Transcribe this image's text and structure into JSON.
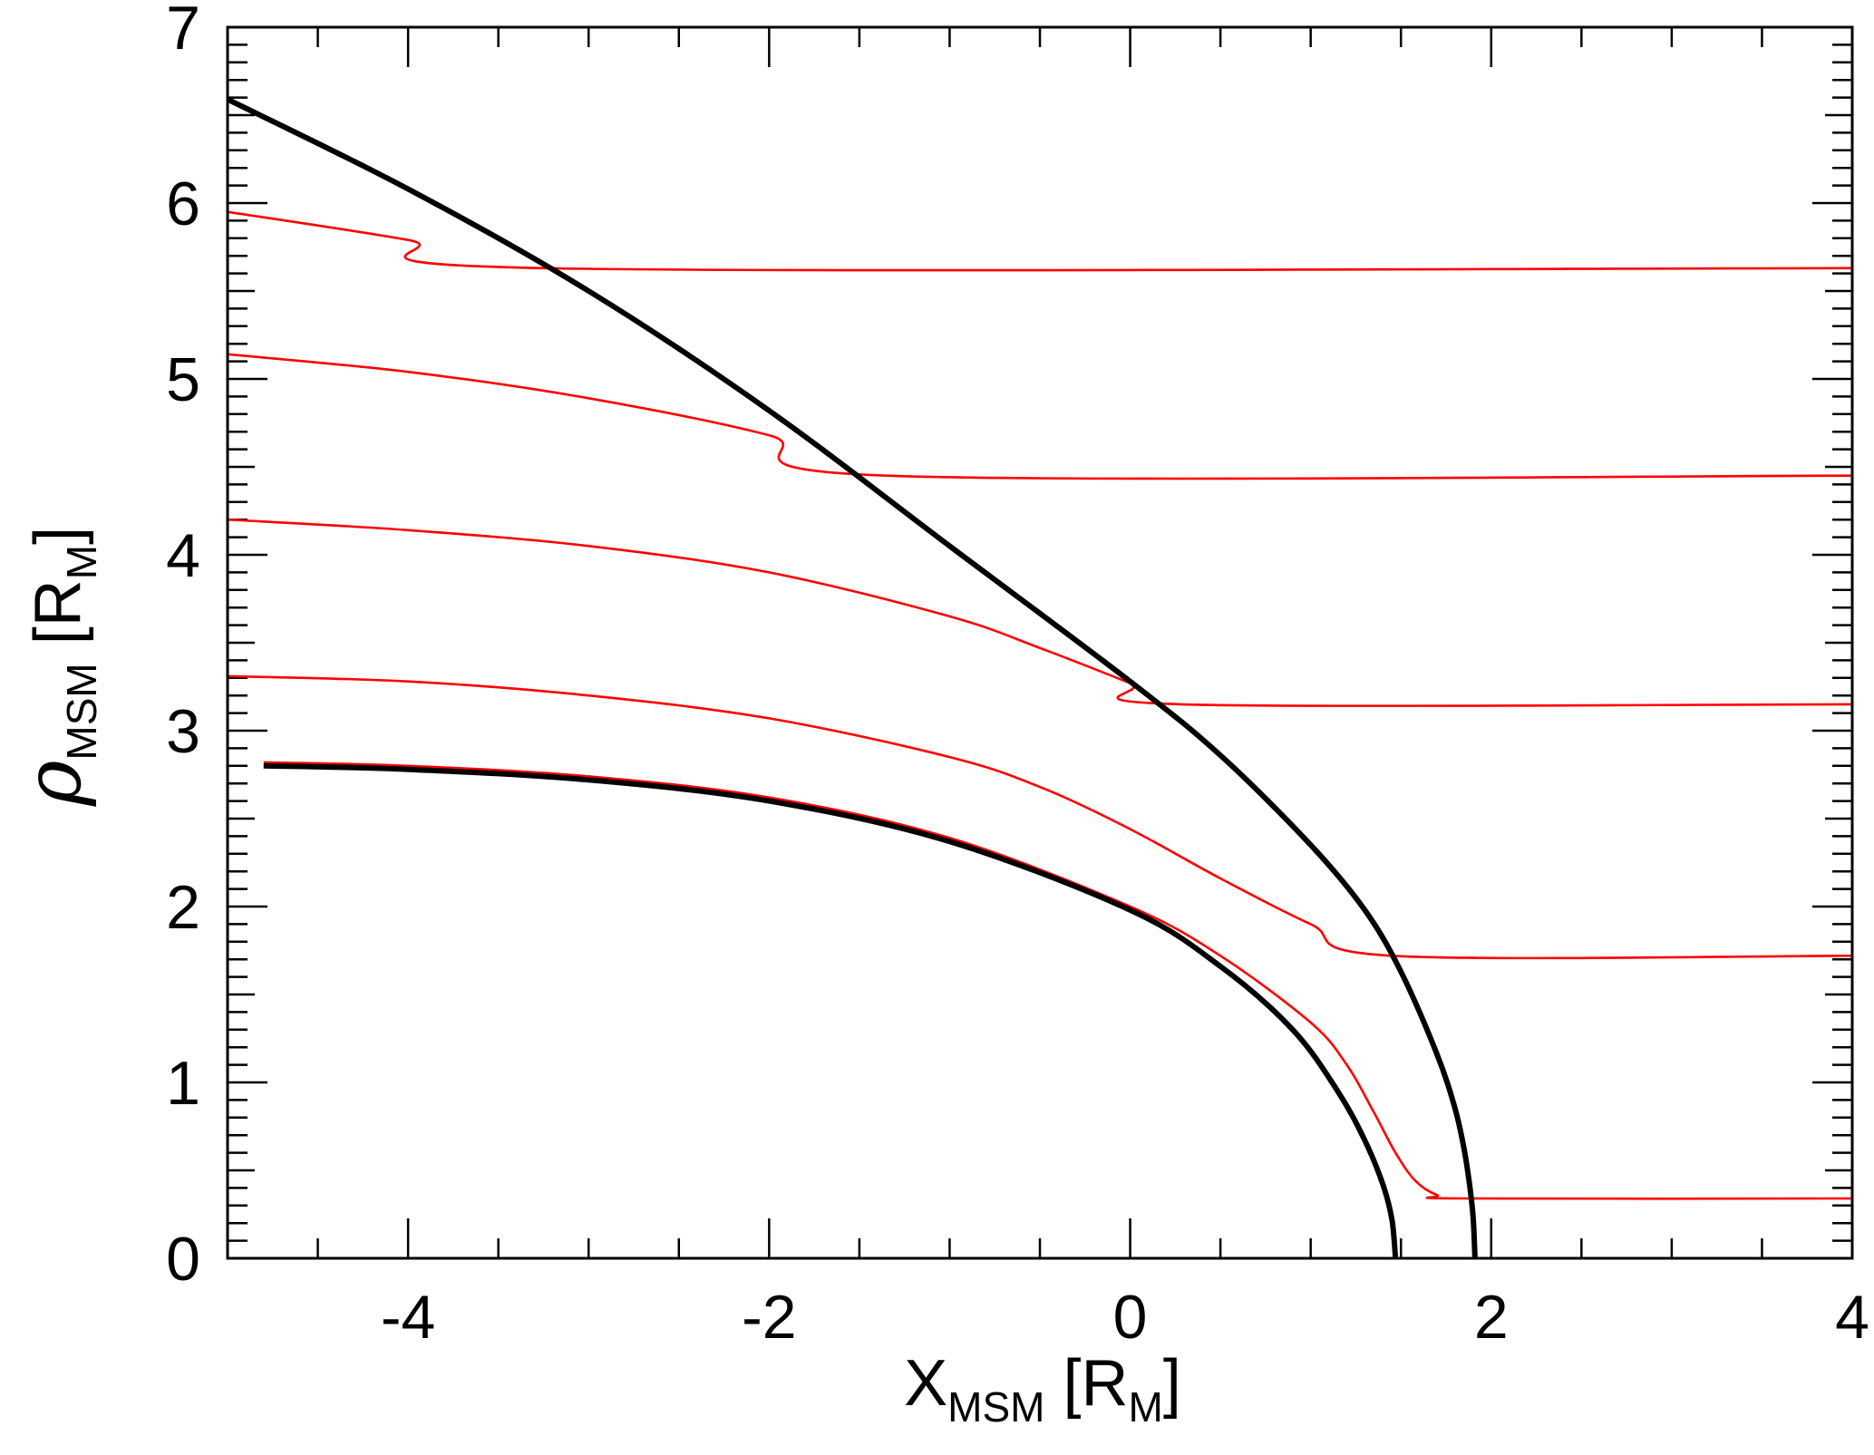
{
  "chart_data": {
    "type": "line",
    "title": "",
    "xlabel": {
      "main": "X",
      "sub": "MSM",
      "unit_open": " [R",
      "unit_sub": "M",
      "unit_close": "]"
    },
    "ylabel": {
      "main": "ρ",
      "sub": "MSM",
      "unit_open": " [R",
      "unit_sub": "M",
      "unit_close": "]"
    },
    "xlim": [
      -5,
      4
    ],
    "ylim": [
      0,
      7
    ],
    "x_major_ticks": [
      -4,
      -2,
      0,
      2,
      4
    ],
    "x_tick_labels": [
      "-4",
      "-2",
      "0",
      "2",
      "4"
    ],
    "y_major_ticks": [
      0,
      1,
      2,
      3,
      4,
      5,
      6,
      7
    ],
    "y_tick_labels": [
      "0",
      "1",
      "2",
      "3",
      "4",
      "5",
      "6",
      "7"
    ],
    "x_minor_step": 0.5,
    "y_minor_step": 0.1,
    "grid": false,
    "legend": "none",
    "colors": {
      "boundary": "#000000",
      "field_line": "#ff0000"
    },
    "series": [
      {
        "role": "boundary",
        "points": [
          [
            -5,
            6.59
          ],
          [
            -4,
            6.08
          ],
          [
            -3,
            5.5
          ],
          [
            -2,
            4.82
          ],
          [
            -1,
            4.05
          ],
          [
            0,
            3.28
          ],
          [
            0.5,
            2.86
          ],
          [
            1,
            2.35
          ],
          [
            1.3,
            1.98
          ],
          [
            1.5,
            1.63
          ],
          [
            1.7,
            1.16
          ],
          [
            1.8,
            0.85
          ],
          [
            1.85,
            0.62
          ],
          [
            1.88,
            0.42
          ],
          [
            1.9,
            0.23
          ],
          [
            1.91,
            0.0
          ]
        ]
      },
      {
        "role": "boundary",
        "points": [
          [
            -4.8,
            2.8
          ],
          [
            -4,
            2.78
          ],
          [
            -3,
            2.72
          ],
          [
            -2,
            2.6
          ],
          [
            -1,
            2.37
          ],
          [
            0,
            1.98
          ],
          [
            0.5,
            1.66
          ],
          [
            0.9,
            1.3
          ],
          [
            1.15,
            0.95
          ],
          [
            1.3,
            0.67
          ],
          [
            1.4,
            0.42
          ],
          [
            1.45,
            0.22
          ],
          [
            1.47,
            0.0
          ]
        ]
      },
      {
        "role": "field_line",
        "points": [
          [
            -5,
            5.95
          ],
          [
            -4,
            5.79
          ],
          [
            -3.25,
            5.63
          ],
          [
            4,
            5.63
          ]
        ]
      },
      {
        "role": "field_line",
        "points": [
          [
            -5,
            5.14
          ],
          [
            -4,
            5.04
          ],
          [
            -3,
            4.89
          ],
          [
            -2,
            4.68
          ],
          [
            -1.35,
            4.45
          ],
          [
            4,
            4.45
          ]
        ]
      },
      {
        "role": "field_line",
        "points": [
          [
            -5,
            4.2
          ],
          [
            -4,
            4.14
          ],
          [
            -3,
            4.05
          ],
          [
            -2,
            3.9
          ],
          [
            -1,
            3.65
          ],
          [
            -0.5,
            3.47
          ],
          [
            0,
            3.27
          ],
          [
            0.28,
            3.15
          ],
          [
            4,
            3.15
          ]
        ]
      },
      {
        "role": "field_line",
        "points": [
          [
            -5,
            3.31
          ],
          [
            -4,
            3.28
          ],
          [
            -3,
            3.2
          ],
          [
            -2,
            3.07
          ],
          [
            -1,
            2.85
          ],
          [
            -0.5,
            2.68
          ],
          [
            0,
            2.44
          ],
          [
            0.5,
            2.16
          ],
          [
            1,
            1.9
          ],
          [
            1.45,
            1.72
          ],
          [
            4,
            1.72
          ]
        ]
      },
      {
        "role": "field_line",
        "points": [
          [
            -4.8,
            2.82
          ],
          [
            -4,
            2.8
          ],
          [
            -3,
            2.74
          ],
          [
            -2,
            2.62
          ],
          [
            -1,
            2.39
          ],
          [
            0,
            2.0
          ],
          [
            0.5,
            1.72
          ],
          [
            1.0,
            1.34
          ],
          [
            1.2,
            1.1
          ],
          [
            1.35,
            0.83
          ],
          [
            1.47,
            0.6
          ],
          [
            1.58,
            0.44
          ],
          [
            1.7,
            0.36
          ],
          [
            1.85,
            0.34
          ],
          [
            4,
            0.34
          ]
        ]
      }
    ]
  }
}
